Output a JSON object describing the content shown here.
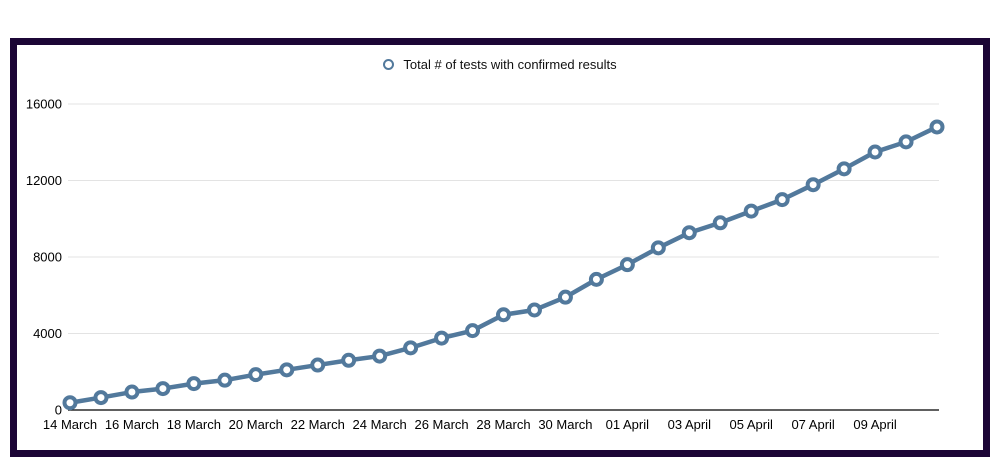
{
  "legend": {
    "label": "Total # of tests with confirmed results"
  },
  "colors": {
    "series": "#52799C",
    "marker_fill": "#ffffff",
    "grid": "#e3e3e3",
    "axis": "#000000",
    "text": "#000000",
    "frame_border": "#1c0636",
    "background": "#ffffff"
  },
  "chart_data": {
    "type": "line",
    "title": "",
    "legend_label": "Total # of tests with confirmed results",
    "legend_position": "top-center",
    "marker": "open-circle",
    "grid": "horizontal",
    "ylim": [
      0,
      16000
    ],
    "yticks": [
      0,
      4000,
      8000,
      12000,
      16000
    ],
    "categories": [
      "14 March",
      "15 March",
      "16 March",
      "17 March",
      "18 March",
      "19 March",
      "20 March",
      "21 March",
      "22 March",
      "23 March",
      "24 March",
      "25 March",
      "26 March",
      "27 March",
      "28 March",
      "29 March",
      "30 March",
      "31 March",
      "01 April",
      "02 April",
      "03 April",
      "04 April",
      "05 April",
      "06 April",
      "07 April",
      "08 April",
      "09 April",
      "10 April",
      "11 April"
    ],
    "values": [
      380,
      650,
      940,
      1120,
      1380,
      1560,
      1850,
      2100,
      2350,
      2600,
      2820,
      3250,
      3760,
      4150,
      4980,
      5230,
      5900,
      6830,
      7600,
      8480,
      9270,
      9790,
      10400,
      11000,
      11780,
      12610,
      13490,
      14020,
      14800
    ],
    "x_tick_step": 2,
    "x_tick_labels": [
      "14 March",
      "16 March",
      "18 March",
      "20 March",
      "22 March",
      "24 March",
      "26 March",
      "28 March",
      "30 March",
      "01 April",
      "03 April",
      "05 April",
      "07 April",
      "09 April"
    ]
  }
}
